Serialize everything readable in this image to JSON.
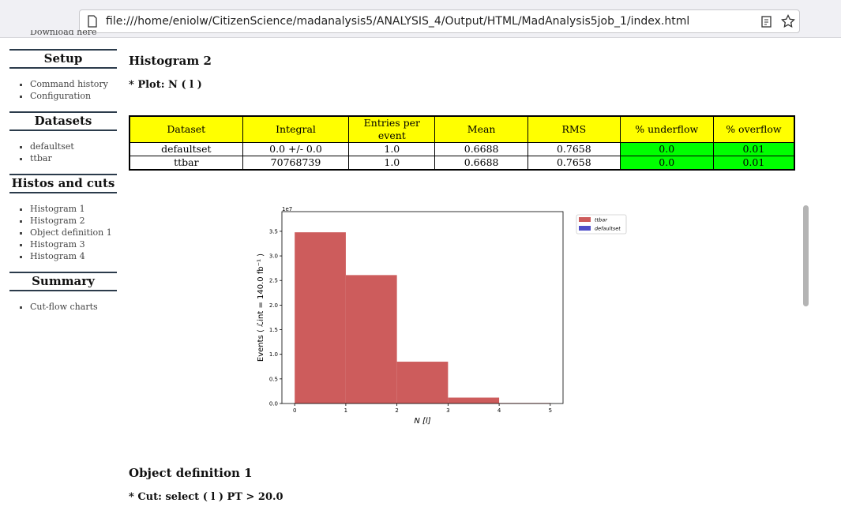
{
  "browser": {
    "url": "file:///home/eniolw/CitizenScience/madanalysis5/ANALYSIS_4/Output/HTML/MadAnalysis5job_1/index.html"
  },
  "sidebar": {
    "clipped": "Download here",
    "sections": [
      {
        "title": "Setup",
        "items": [
          "Command history",
          "Configuration"
        ]
      },
      {
        "title": "Datasets",
        "items": [
          "defaultset",
          "ttbar"
        ]
      },
      {
        "title": "Histos and cuts",
        "items": [
          "Histogram 1",
          "Histogram 2",
          "Object definition 1",
          "Histogram 3",
          "Histogram 4"
        ]
      },
      {
        "title": "Summary",
        "items": [
          "Cut-flow charts"
        ]
      }
    ]
  },
  "main": {
    "heading": "Histogram 2",
    "plot_label": "* Plot: N ( l )",
    "table": {
      "header": [
        "Dataset",
        "Integral",
        "Entries per event",
        "Mean",
        "RMS",
        "% underflow",
        "% overflow"
      ],
      "rows": [
        [
          "defaultset",
          "0.0 +/- 0.0",
          "1.0",
          "0.6688",
          "0.7658",
          "0.0",
          "0.01"
        ],
        [
          "ttbar",
          "70768739",
          "1.0",
          "0.6688",
          "0.7658",
          "0.0",
          "0.01"
        ]
      ]
    },
    "next_heading": "Object definition 1",
    "cut_label": "* Cut: select ( l ) PT > 20.0"
  },
  "chart_data": {
    "type": "histogram",
    "x_label": "N [l]",
    "y_label": "Events ( ℒint = 140.0 fb⁻¹ )",
    "y_offset_label": "1e7",
    "bins": [
      0,
      1,
      2,
      3,
      4,
      5
    ],
    "series": [
      {
        "name": "ttbar",
        "color": "#cd5c5c",
        "values": [
          3.48,
          2.61,
          0.85,
          0.12,
          0.01
        ]
      },
      {
        "name": "defaultset",
        "color": "#4f4fc9",
        "values": [
          0,
          0,
          0,
          0,
          0
        ]
      }
    ],
    "xlim": [
      -0.25,
      5.25
    ],
    "ylim": [
      0,
      3.9
    ],
    "xticks": [
      0,
      1,
      2,
      3,
      4,
      5
    ],
    "yticks": [
      {
        "value": 0,
        "label": "0.0"
      },
      {
        "value": 0.5,
        "label": "0.5"
      },
      {
        "value": 1,
        "label": "1.0"
      },
      {
        "value": 1.5,
        "label": "1.5"
      },
      {
        "value": 2,
        "label": "2.0"
      },
      {
        "value": 2.5,
        "label": "2.5"
      },
      {
        "value": 3,
        "label": "3.0"
      },
      {
        "value": 3.5,
        "label": "3.5"
      }
    ],
    "legend": "upper right outside"
  }
}
